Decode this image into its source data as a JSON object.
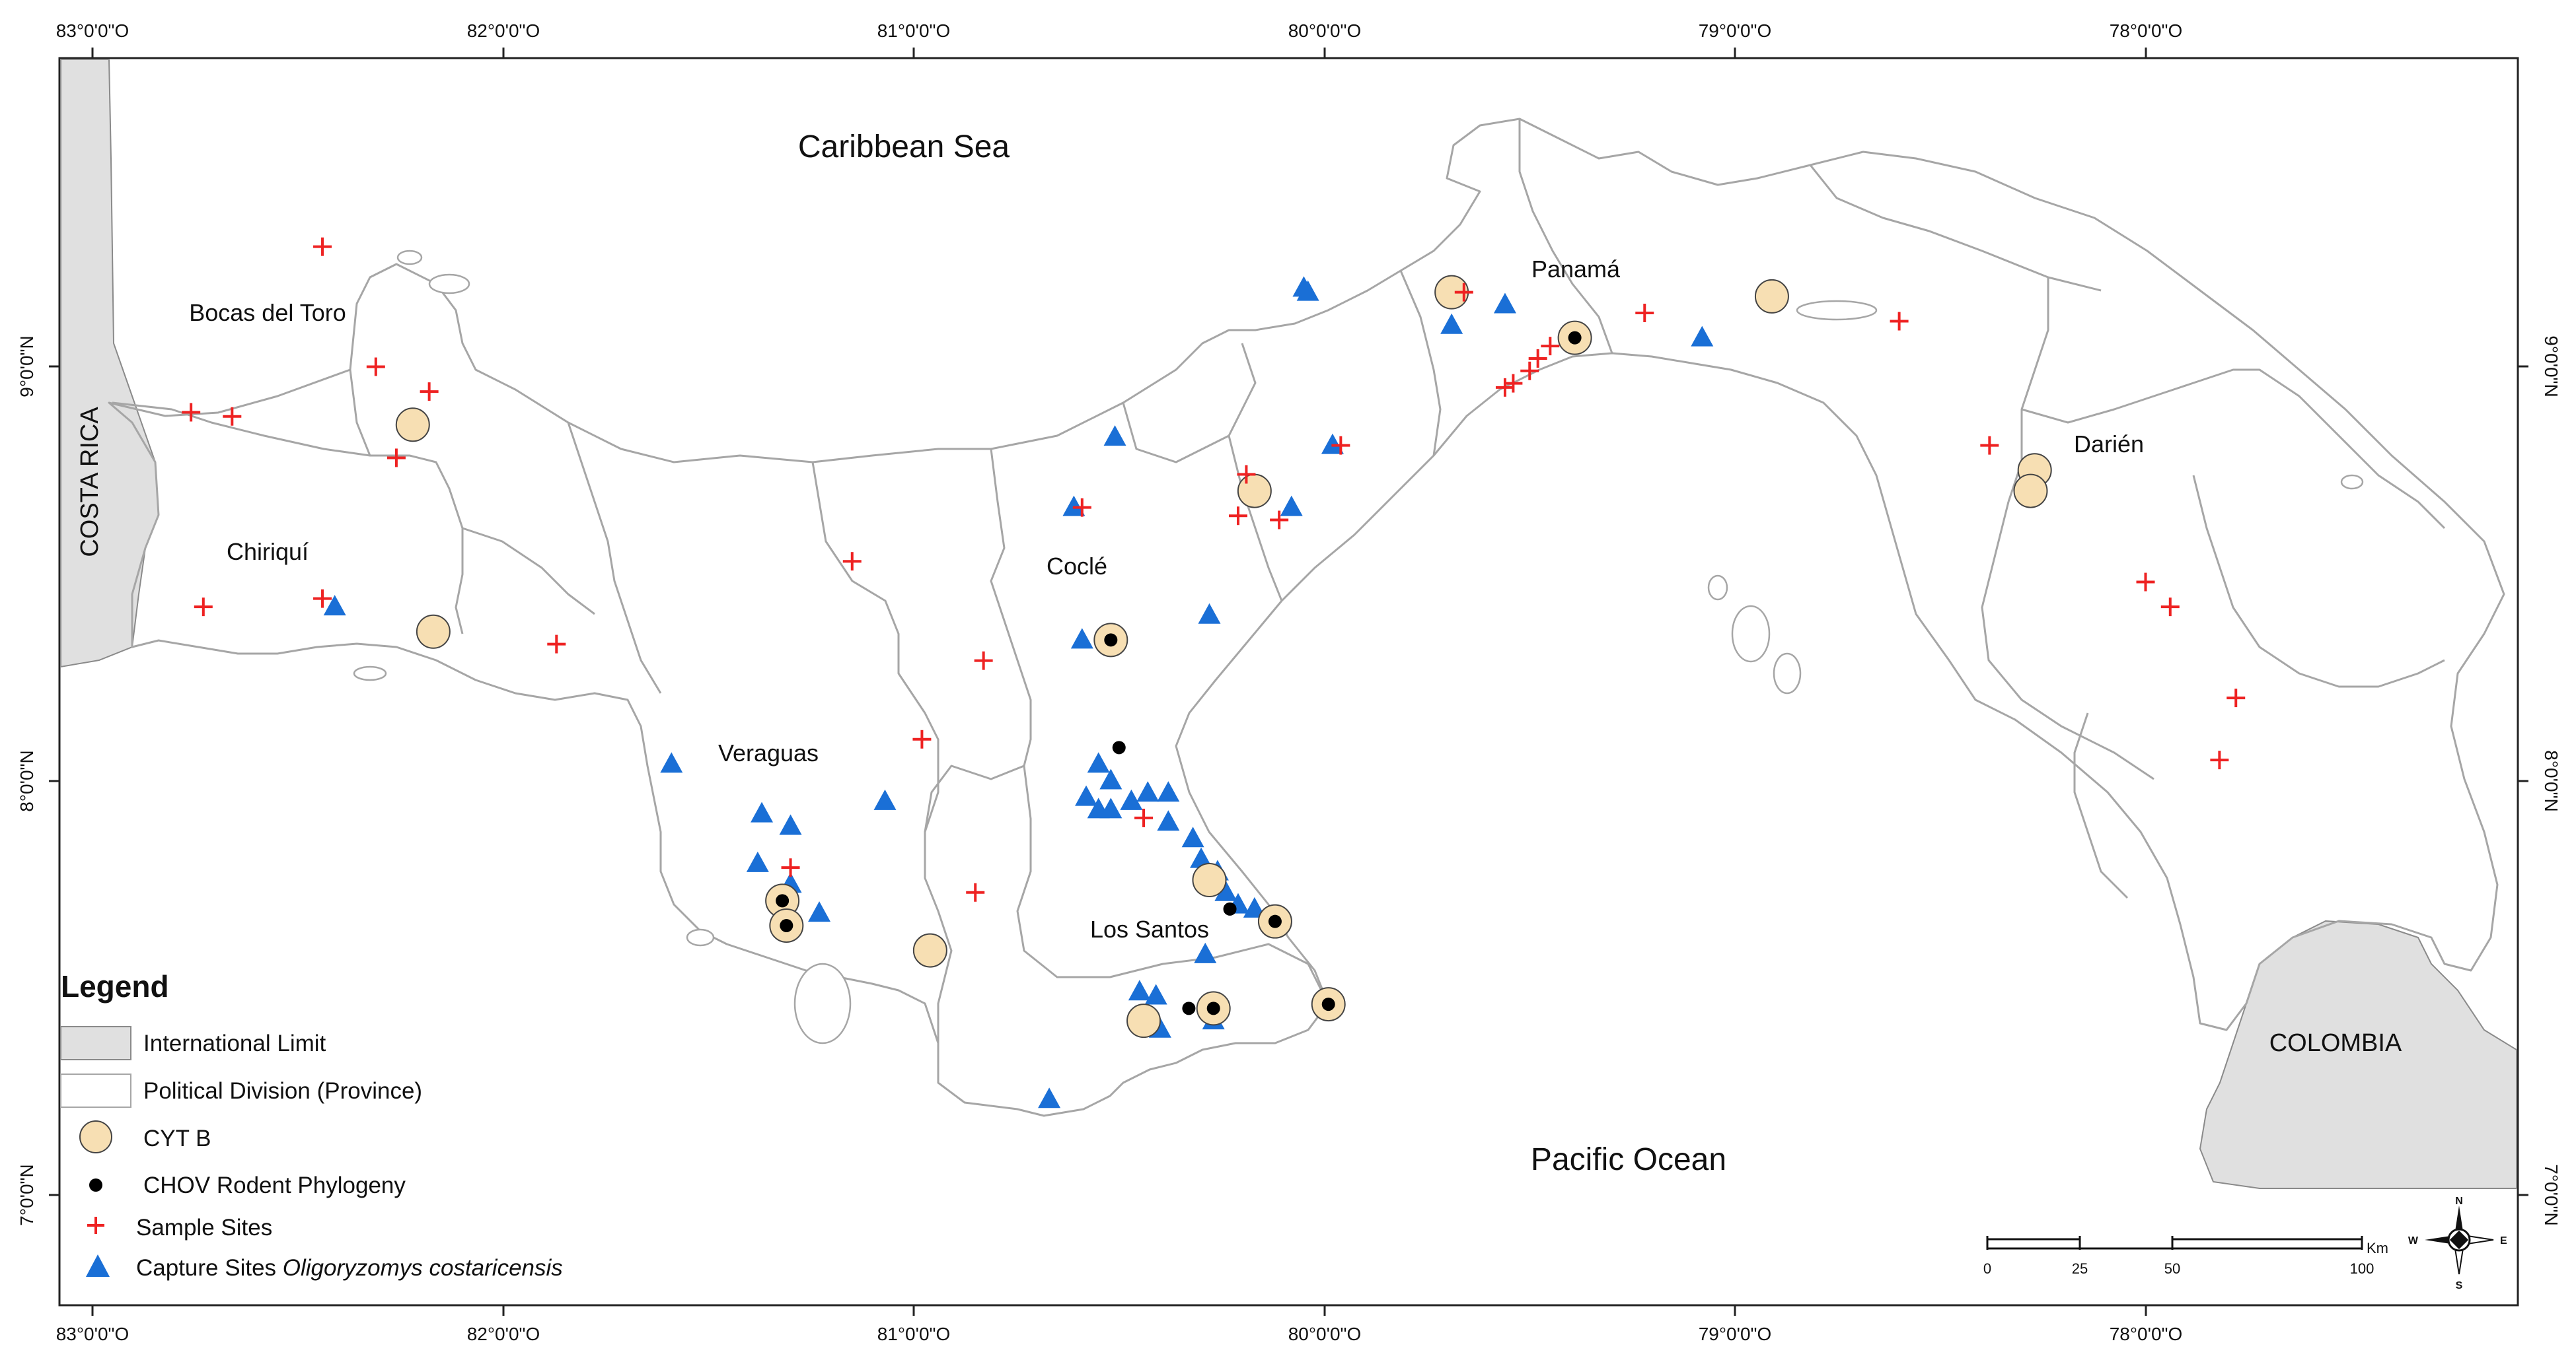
{
  "map": {
    "top_longitude_ticks": [
      "83°0'0\"O",
      "82°0'0\"O",
      "81°0'0\"O",
      "80°0'0\"O",
      "79°0'0\"O",
      "78°0'0\"O"
    ],
    "bottom_longitude_ticks": [
      "83°0'0\"O",
      "82°0'0\"O",
      "81°0'0\"O",
      "80°0'0\"O",
      "79°0'0\"O",
      "78°0'0\"O"
    ],
    "left_latitude_ticks": [
      "9°0'0\"N",
      "8°0'0\"N",
      "7°0'0\"N"
    ],
    "right_latitude_ticks": [
      "9°0'0\"N",
      "8°0'0\"N",
      "7°0'0\"N"
    ],
    "seas": {
      "caribbean": "Caribbean Sea",
      "pacific": "Pacific Ocean"
    },
    "countries": {
      "costa_rica": "COSTA RICA",
      "colombia": "COLOMBIA"
    },
    "provinces": {
      "bocas_del_toro": "Bocas del Toro",
      "chiriqui": "Chiriquí",
      "veraguas": "Veraguas",
      "cocle": "Coclé",
      "los_santos": "Los Santos",
      "panama": "Panamá",
      "darien": "Darién"
    },
    "colors": {
      "sample_site": "#ee2222",
      "capture_site": "#1a6fd6",
      "cyt_b": "#f7dfb3",
      "chov": "#000000",
      "international_limit": "#e0e0e0",
      "boundary": "#a6a6a6"
    },
    "markers": {
      "sample_sites": [
        [
          -82.44,
          9.29
        ],
        [
          -82.76,
          8.89
        ],
        [
          -82.66,
          8.88
        ],
        [
          -82.31,
          9.0
        ],
        [
          -82.18,
          8.94
        ],
        [
          -82.26,
          8.78
        ],
        [
          -82.73,
          8.42
        ],
        [
          -82.44,
          8.44
        ],
        [
          -81.87,
          8.33
        ],
        [
          -81.15,
          8.53
        ],
        [
          -80.83,
          8.29
        ],
        [
          -80.98,
          8.1
        ],
        [
          -80.85,
          7.73
        ],
        [
          -81.3,
          7.79
        ],
        [
          -80.44,
          7.91
        ],
        [
          -80.59,
          8.66
        ],
        [
          -80.19,
          8.74
        ],
        [
          -80.21,
          8.64
        ],
        [
          -80.11,
          8.63
        ],
        [
          -79.96,
          8.81
        ],
        [
          -79.56,
          8.95
        ],
        [
          -79.54,
          8.96
        ],
        [
          -79.5,
          8.99
        ],
        [
          -79.48,
          9.02
        ],
        [
          -79.45,
          9.05
        ],
        [
          -79.22,
          9.13
        ],
        [
          -79.66,
          9.18
        ],
        [
          -78.6,
          9.11
        ],
        [
          -78.38,
          8.81
        ],
        [
          -78.0,
          8.48
        ],
        [
          -77.94,
          8.42
        ],
        [
          -77.78,
          8.2
        ],
        [
          -77.82,
          8.05
        ]
      ],
      "capture_sites": [
        [
          -82.41,
          8.42
        ],
        [
          -81.59,
          8.04
        ],
        [
          -81.37,
          7.92
        ],
        [
          -81.3,
          7.89
        ],
        [
          -81.38,
          7.8
        ],
        [
          -81.3,
          7.75
        ],
        [
          -81.23,
          7.68
        ],
        [
          -81.07,
          7.95
        ],
        [
          -80.61,
          8.66
        ],
        [
          -80.51,
          8.83
        ],
        [
          -80.59,
          8.34
        ],
        [
          -80.28,
          8.4
        ],
        [
          -80.08,
          8.66
        ],
        [
          -79.98,
          8.81
        ],
        [
          -80.05,
          9.19
        ],
        [
          -80.04,
          9.18
        ],
        [
          -79.69,
          9.1
        ],
        [
          -79.56,
          9.15
        ],
        [
          -79.08,
          9.07
        ],
        [
          -80.55,
          8.04
        ],
        [
          -80.52,
          8.0
        ],
        [
          -80.58,
          7.96
        ],
        [
          -80.55,
          7.93
        ],
        [
          -80.52,
          7.93
        ],
        [
          -80.47,
          7.95
        ],
        [
          -80.43,
          7.97
        ],
        [
          -80.38,
          7.97
        ],
        [
          -80.38,
          7.9
        ],
        [
          -80.32,
          7.86
        ],
        [
          -80.3,
          7.81
        ],
        [
          -80.26,
          7.78
        ],
        [
          -80.24,
          7.73
        ],
        [
          -80.21,
          7.7
        ],
        [
          -80.17,
          7.69
        ],
        [
          -80.29,
          7.58
        ],
        [
          -80.67,
          7.23
        ],
        [
          -80.45,
          7.49
        ],
        [
          -80.41,
          7.48
        ],
        [
          -80.43,
          7.42
        ],
        [
          -80.27,
          7.42
        ],
        [
          -80.4,
          7.4
        ]
      ],
      "cyt_b": [
        [
          -82.22,
          8.86
        ],
        [
          -82.17,
          8.36
        ],
        [
          -80.96,
          7.59
        ],
        [
          -81.32,
          7.71
        ],
        [
          -81.31,
          7.65
        ],
        [
          -80.52,
          8.34
        ],
        [
          -80.28,
          7.76
        ],
        [
          -80.12,
          7.66
        ],
        [
          -80.44,
          7.42
        ],
        [
          -80.27,
          7.45
        ],
        [
          -79.99,
          7.46
        ],
        [
          -80.17,
          8.7
        ],
        [
          -79.69,
          9.18
        ],
        [
          -79.39,
          9.07
        ],
        [
          -78.91,
          9.17
        ],
        [
          -78.27,
          8.75
        ],
        [
          -78.28,
          8.7
        ]
      ],
      "chov": [
        [
          -81.32,
          7.71
        ],
        [
          -81.31,
          7.65
        ],
        [
          -80.52,
          8.34
        ],
        [
          -80.5,
          8.08
        ],
        [
          -80.23,
          7.69
        ],
        [
          -80.12,
          7.66
        ],
        [
          -80.33,
          7.45
        ],
        [
          -80.27,
          7.45
        ],
        [
          -79.99,
          7.46
        ],
        [
          -79.39,
          9.07
        ]
      ]
    }
  },
  "legend": {
    "title": "Legend",
    "items": [
      {
        "label": "International Limit",
        "label_italic": ""
      },
      {
        "label": "Political Division (Province)",
        "label_italic": ""
      },
      {
        "label": "CYT B",
        "label_italic": ""
      },
      {
        "label": "CHOV Rodent Phylogeny",
        "label_italic": ""
      },
      {
        "label": "Sample Sites",
        "label_italic": ""
      },
      {
        "label": "Capture Sites ",
        "label_italic": "Oligoryzomys costaricensis"
      }
    ]
  },
  "scale_bar": {
    "unit": "Km",
    "ticks": [
      "0",
      "25",
      "50",
      "100"
    ]
  },
  "compass": {
    "n": "N",
    "s": "S",
    "e": "E",
    "w": "W"
  }
}
